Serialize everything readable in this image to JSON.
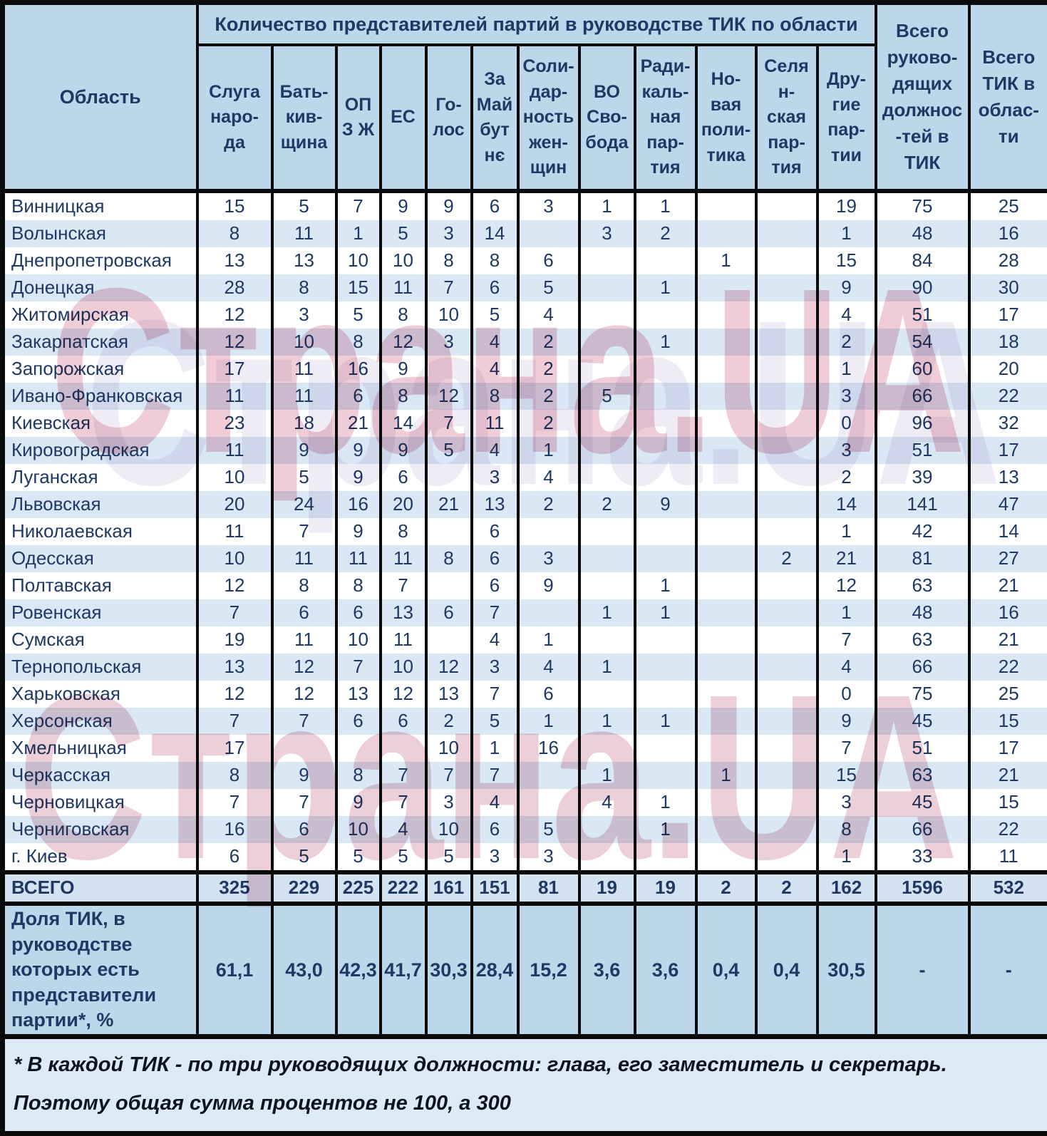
{
  "title": "Количество представителей партий в руководстве ТИК по области",
  "columns": {
    "area": "Область",
    "parties": [
      "Слуга наро-да",
      "Бать-кив-щина",
      "ОПЗ Ж",
      "ЕС",
      "Го-лос",
      "За Майбутнє",
      "Соли-дар-ность жен-щин",
      "ВО Сво-бода",
      "Ради-каль-ная пар-тия",
      "Но-вая поли-тика",
      "Селян-ская пар-тия",
      "Дру-гие пар-тии"
    ],
    "total_positions": "Всего руково-дящих должнос-тей в ТИК",
    "total_tik": "Всего ТИК в облас-ти"
  },
  "rows": [
    {
      "name": "Винницкая",
      "values": [
        15,
        5,
        7,
        9,
        9,
        6,
        3,
        1,
        1,
        "",
        "",
        19,
        75,
        25
      ]
    },
    {
      "name": "Волынская",
      "values": [
        8,
        11,
        1,
        5,
        3,
        14,
        "",
        3,
        2,
        "",
        "",
        1,
        48,
        16
      ]
    },
    {
      "name": "Днепропетровская",
      "values": [
        13,
        13,
        10,
        10,
        8,
        8,
        6,
        "",
        "",
        1,
        "",
        15,
        84,
        28
      ]
    },
    {
      "name": "Донецкая",
      "values": [
        28,
        8,
        15,
        11,
        7,
        6,
        5,
        "",
        1,
        "",
        "",
        9,
        90,
        30
      ]
    },
    {
      "name": "Житомирская",
      "values": [
        12,
        3,
        5,
        8,
        10,
        5,
        4,
        "",
        "",
        "",
        "",
        4,
        51,
        17
      ]
    },
    {
      "name": "Закарпатская",
      "values": [
        12,
        10,
        8,
        12,
        3,
        4,
        2,
        "",
        1,
        "",
        "",
        2,
        54,
        18
      ]
    },
    {
      "name": "Запорожская",
      "values": [
        17,
        11,
        16,
        9,
        "",
        4,
        2,
        "",
        "",
        "",
        "",
        1,
        60,
        20
      ]
    },
    {
      "name": "Ивано-Франковская",
      "values": [
        11,
        11,
        6,
        8,
        12,
        8,
        2,
        5,
        "",
        "",
        "",
        3,
        66,
        22
      ]
    },
    {
      "name": "Киевская",
      "values": [
        23,
        18,
        21,
        14,
        7,
        11,
        2,
        "",
        "",
        "",
        "",
        0,
        96,
        32
      ]
    },
    {
      "name": "Кировоградская",
      "values": [
        11,
        9,
        9,
        9,
        5,
        4,
        1,
        "",
        "",
        "",
        "",
        3,
        51,
        17
      ]
    },
    {
      "name": "Луганская",
      "values": [
        10,
        5,
        9,
        6,
        "",
        3,
        4,
        "",
        "",
        "",
        "",
        2,
        39,
        13
      ]
    },
    {
      "name": "Львовская",
      "values": [
        20,
        24,
        16,
        20,
        21,
        13,
        2,
        2,
        9,
        "",
        "",
        14,
        141,
        47
      ]
    },
    {
      "name": "Николаевская",
      "values": [
        11,
        7,
        9,
        8,
        "",
        6,
        "",
        "",
        "",
        "",
        "",
        1,
        42,
        14
      ]
    },
    {
      "name": "Одесская",
      "values": [
        10,
        11,
        11,
        11,
        8,
        6,
        3,
        "",
        "",
        "",
        2,
        21,
        81,
        27
      ]
    },
    {
      "name": "Полтавская",
      "values": [
        12,
        8,
        8,
        7,
        "",
        6,
        9,
        "",
        1,
        "",
        "",
        12,
        63,
        21
      ]
    },
    {
      "name": "Ровенская",
      "values": [
        7,
        6,
        6,
        13,
        6,
        7,
        "",
        1,
        1,
        "",
        "",
        1,
        48,
        16
      ]
    },
    {
      "name": "Сумская",
      "values": [
        19,
        11,
        10,
        11,
        "",
        4,
        1,
        "",
        "",
        "",
        "",
        7,
        63,
        21
      ]
    },
    {
      "name": "Тернопольская",
      "values": [
        13,
        12,
        7,
        10,
        12,
        3,
        4,
        1,
        "",
        "",
        "",
        4,
        66,
        22
      ]
    },
    {
      "name": "Харьковская",
      "values": [
        12,
        12,
        13,
        12,
        13,
        7,
        6,
        "",
        "",
        "",
        "",
        0,
        75,
        25
      ]
    },
    {
      "name": "Херсонская",
      "values": [
        7,
        7,
        6,
        6,
        2,
        5,
        1,
        1,
        1,
        "",
        "",
        9,
        45,
        15
      ]
    },
    {
      "name": "Хмельницкая",
      "values": [
        17,
        "",
        "",
        "",
        10,
        1,
        16,
        "",
        "",
        "",
        "",
        7,
        51,
        17
      ]
    },
    {
      "name": "Черкасская",
      "values": [
        8,
        9,
        8,
        7,
        7,
        7,
        "",
        1,
        "",
        1,
        "",
        15,
        63,
        21
      ]
    },
    {
      "name": "Черновицкая",
      "values": [
        7,
        7,
        9,
        7,
        3,
        4,
        "",
        4,
        1,
        "",
        "",
        3,
        45,
        15
      ]
    },
    {
      "name": "Черниговская",
      "values": [
        16,
        6,
        10,
        4,
        10,
        6,
        5,
        "",
        1,
        "",
        "",
        8,
        66,
        22
      ]
    },
    {
      "name": "г. Киев",
      "values": [
        6,
        5,
        5,
        5,
        5,
        3,
        3,
        "",
        "",
        "",
        "",
        1,
        33,
        11
      ]
    }
  ],
  "totals": {
    "label": "ВСЕГО",
    "values": [
      325,
      229,
      225,
      222,
      161,
      151,
      81,
      19,
      19,
      2,
      2,
      162,
      1596,
      532
    ]
  },
  "share": {
    "label": "Доля ТИК, в руководстве которых есть представители партии*, %",
    "values": [
      "61,1",
      "43,0",
      "42,3",
      "41,7",
      "30,3",
      "28,4",
      "15,2",
      "3,6",
      "3,6",
      "0,4",
      "0,4",
      "30,5",
      "-",
      "-"
    ]
  },
  "footnote": "* В каждой ТИК - по три руководящих должности: глава, его заместитель и секретарь. Поэтому общая сумма процентов не 100, а 300",
  "watermark": {
    "text": "Страна.UA"
  },
  "colors": {
    "header_bg": "#bcd6ea",
    "row_stripe_bg": "#dae8f5",
    "row_bg": "#ffffff",
    "totals_bg": "#d4e3f2",
    "share_bg": "#bcd6ea",
    "footnote_bg": "#dcebf7",
    "border": "#0a0a0a",
    "text": "#1f3864",
    "watermark_pink": "#d68098"
  }
}
